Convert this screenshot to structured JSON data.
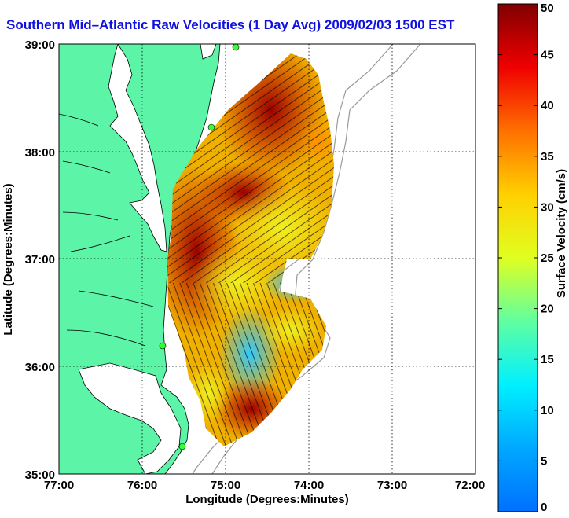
{
  "title": "Southern Mid–Atlantic Raw Velocities (1 Day Avg) 2009/02/03 1500 EST",
  "map": {
    "xlabel": "Longitude (Degrees:Minutes)",
    "ylabel": "Latitude (Degrees:Minutes)",
    "x_ticks": [
      "77:00",
      "76:00",
      "75:00",
      "74:00",
      "73:00",
      "72:00"
    ],
    "y_ticks": [
      "39:00",
      "38:00",
      "37:00",
      "36:00",
      "35:00"
    ],
    "land_color": "#5cf5a8",
    "water_color": "#ffffff"
  },
  "colorbar": {
    "label": "Surface Velocity (cm/s)",
    "ticks": [
      "0",
      "5",
      "10",
      "15",
      "20",
      "25",
      "30",
      "35",
      "40",
      "45",
      "50"
    ],
    "min": 0,
    "max": 50,
    "colormap": "jet"
  }
}
